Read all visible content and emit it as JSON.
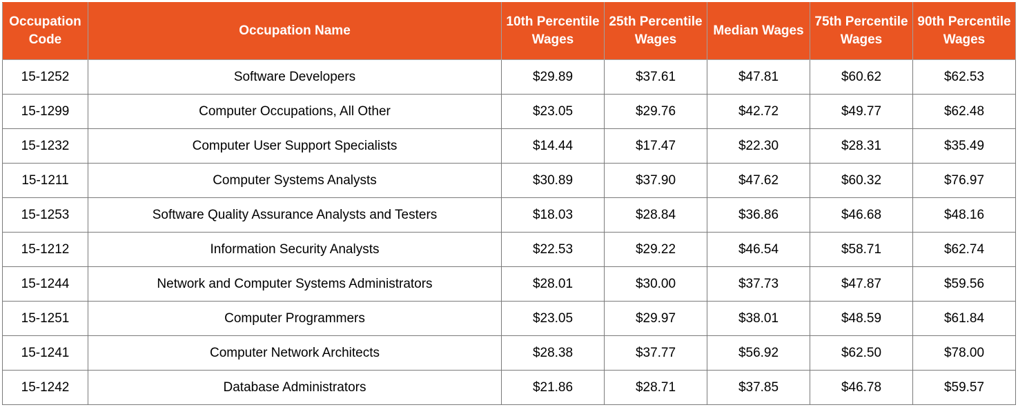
{
  "chart_data": {
    "type": "table",
    "columns": [
      "Occupation Code",
      "Occupation Name",
      "10th Percentile Wages",
      "25th Percentile Wages",
      "Median Wages",
      "75th Percentile Wages",
      "90th Percentile Wages"
    ],
    "rows": [
      [
        "15-1252",
        "Software Developers",
        "$29.89",
        "$37.61",
        "$47.81",
        "$60.62",
        "$62.53"
      ],
      [
        "15-1299",
        "Computer Occupations, All Other",
        "$23.05",
        "$29.76",
        "$42.72",
        "$49.77",
        "$62.48"
      ],
      [
        "15-1232",
        "Computer User Support Specialists",
        "$14.44",
        "$17.47",
        "$22.30",
        "$28.31",
        "$35.49"
      ],
      [
        "15-1211",
        "Computer Systems Analysts",
        "$30.89",
        "$37.90",
        "$47.62",
        "$60.32",
        "$76.97"
      ],
      [
        "15-1253",
        "Software Quality Assurance Analysts and Testers",
        "$18.03",
        "$28.84",
        "$36.86",
        "$46.68",
        "$48.16"
      ],
      [
        "15-1212",
        "Information Security Analysts",
        "$22.53",
        "$29.22",
        "$46.54",
        "$58.71",
        "$62.74"
      ],
      [
        "15-1244",
        "Network and Computer Systems Administrators",
        "$28.01",
        "$30.00",
        "$37.73",
        "$47.87",
        "$59.56"
      ],
      [
        "15-1251",
        "Computer Programmers",
        "$23.05",
        "$29.97",
        "$38.01",
        "$48.59",
        "$61.84"
      ],
      [
        "15-1241",
        "Computer Network Architects",
        "$28.38",
        "$37.77",
        "$56.92",
        "$62.50",
        "$78.00"
      ],
      [
        "15-1242",
        "Database Administrators",
        "$21.86",
        "$28.71",
        "$37.85",
        "$46.78",
        "$59.57"
      ]
    ]
  },
  "colors": {
    "header_background": "#ea5522",
    "header_text": "#ffffff",
    "cell_text": "#000000",
    "grid": "#7a7a7a"
  }
}
